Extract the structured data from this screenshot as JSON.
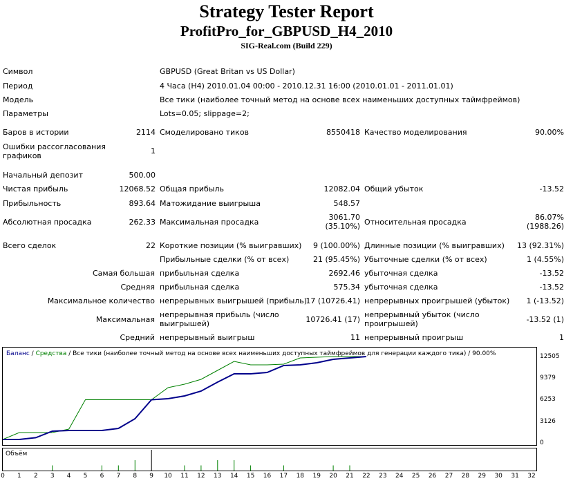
{
  "report": {
    "title": "Strategy Tester Report",
    "expert": "ProfitPro_for_GBPUSD_H4_2010",
    "server": "SIG-Real.com (Build 229)"
  },
  "params": {
    "symbol_label": "Символ",
    "symbol_value": "GBPUSD (Great Britan vs US Dollar)",
    "period_label": "Период",
    "period_value": "4 Часа (H4) 2010.01.04 00:00 - 2010.12.31 16:00 (2010.01.01 - 2011.01.01)",
    "model_label": "Модель",
    "model_value": "Все тики (наиболее точный метод на основе всех наименьших доступных таймфреймов)",
    "inputs_label": "Параметры",
    "inputs_value": "Lots=0.05; slippage=2;"
  },
  "stats": {
    "bars_label": "Баров в истории",
    "bars_value": "2114",
    "ticks_label": "Смоделировано тиков",
    "ticks_value": "8550418",
    "quality_label": "Качество моделирования",
    "quality_value": "90.00%",
    "mismatch_label": "Ошибки рассогласования графиков",
    "mismatch_value": "1",
    "deposit_label": "Начальный депозит",
    "deposit_value": "500.00",
    "net_profit_label": "Чистая прибыль",
    "net_profit_value": "12068.52",
    "gross_profit_label": "Общая прибыль",
    "gross_profit_value": "12082.04",
    "gross_loss_label": "Общий убыток",
    "gross_loss_value": "-13.52",
    "profit_factor_label": "Прибыльность",
    "profit_factor_value": "893.64",
    "expected_payoff_label": "Матожидание выигрыша",
    "expected_payoff_value": "548.57",
    "abs_dd_label": "Абсолютная просадка",
    "abs_dd_value": "262.33",
    "max_dd_label": "Максимальная просадка",
    "max_dd_value1": "3061.70",
    "max_dd_value2": "(35.10%)",
    "rel_dd_label": "Относительная просадка",
    "rel_dd_value1": "86.07%",
    "rel_dd_value2": "(1988.26)",
    "total_trades_label": "Всего сделок",
    "total_trades_value": "22",
    "short_label": "Короткие позиции (% выигравших)",
    "short_value": "9 (100.00%)",
    "long_label": "Длинные позиции (% выигравших)",
    "long_value": "13 (92.31%)",
    "profit_trades_label": "Прибыльные сделки (% от всех)",
    "profit_trades_value": "21 (95.45%)",
    "loss_trades_label": "Убыточные сделки (% от всех)",
    "loss_trades_value": "1 (4.55%)",
    "largest_label": "Самая большая",
    "largest_profit_label": "прибыльная сделка",
    "largest_profit_value": "2692.46",
    "largest_loss_label": "убыточная сделка",
    "largest_loss_value": "-13.52",
    "average_label": "Средняя",
    "average_profit_label": "прибыльная сделка",
    "average_profit_value": "575.34",
    "average_loss_label": "убыточная сделка",
    "average_loss_value": "-13.52",
    "max_count_label": "Максимальное количество",
    "max_cons_wins_label": "непрерывных выигрышей (прибыль)",
    "max_cons_wins_value": "17 (10726.41)",
    "max_cons_losses_label": "непрерывных проигрышей (убыток)",
    "max_cons_losses_value": "1 (-13.52)",
    "maximal_label": "Максимальная",
    "maximal_profit_label": "непрерывная прибыль (число выигрышей)",
    "maximal_profit_value": "10726.41 (17)",
    "maximal_loss_label": "непрерывный убыток (число проигрышей)",
    "maximal_loss_value": "-13.52 (1)",
    "avg_cons_label": "Средний",
    "avg_cons_wins_label": "непрерывный выигрыш",
    "avg_cons_wins_value": "11",
    "avg_cons_losses_label": "непрерывный проигрыш",
    "avg_cons_losses_value": "1"
  },
  "chart_data": {
    "type": "line",
    "legend": {
      "balance": "Баланс",
      "sep1": " / ",
      "equity": "Средства",
      "sep2": " / ",
      "info": "Все тики (наиболее точный метод на основе всех наименьших доступных таймфреймов для генерации каждого тика)",
      "sep3": " / ",
      "quality": "90.00%"
    },
    "volume_label": "Объём",
    "xlim": [
      0,
      32
    ],
    "ylim": [
      0,
      12800
    ],
    "y_ticks": [
      0,
      3126,
      6253,
      9379,
      12505
    ],
    "x_ticks": [
      0,
      1,
      2,
      3,
      4,
      5,
      6,
      7,
      8,
      9,
      10,
      11,
      12,
      13,
      14,
      15,
      16,
      17,
      18,
      19,
      20,
      21,
      22,
      23,
      24,
      25,
      26,
      27,
      28,
      29,
      30,
      31,
      32
    ],
    "colors": {
      "balance": "#00008b",
      "equity": "#008000",
      "volume": "#008000",
      "volume_peak": "#000000"
    },
    "series": [
      {
        "name": "Баланс",
        "x": [
          0,
          1,
          2,
          3,
          4,
          5,
          6,
          7,
          8,
          9,
          10,
          11,
          12,
          13,
          14,
          15,
          16,
          17,
          18,
          19,
          20,
          21,
          22
        ],
        "y": [
          500,
          500,
          763,
          1700,
          1800,
          1800,
          1800,
          2100,
          3500,
          6253,
          6400,
          6800,
          7500,
          8800,
          10000,
          10000,
          10200,
          11200,
          11300,
          11600,
          12100,
          12300,
          12500
        ]
      },
      {
        "name": "Средства",
        "x": [
          0,
          1,
          2,
          3,
          4,
          5,
          6,
          7,
          8,
          9,
          10,
          11,
          12,
          13,
          14,
          15,
          16,
          17,
          18,
          19,
          20,
          21,
          22
        ],
        "y": [
          500,
          1500,
          1500,
          1500,
          2000,
          6253,
          6253,
          6253,
          6253,
          6253,
          8000,
          8500,
          9200,
          10500,
          11800,
          11300,
          11300,
          11400,
          12300,
          12400,
          12500,
          12505,
          12500
        ]
      }
    ],
    "volume": {
      "x": [
        3,
        6,
        7,
        8,
        9,
        11,
        12,
        13,
        14,
        15,
        17,
        20,
        21
      ],
      "y": [
        1,
        1,
        1,
        2,
        4,
        1,
        1,
        2,
        2,
        1,
        1,
        1,
        1
      ]
    }
  }
}
